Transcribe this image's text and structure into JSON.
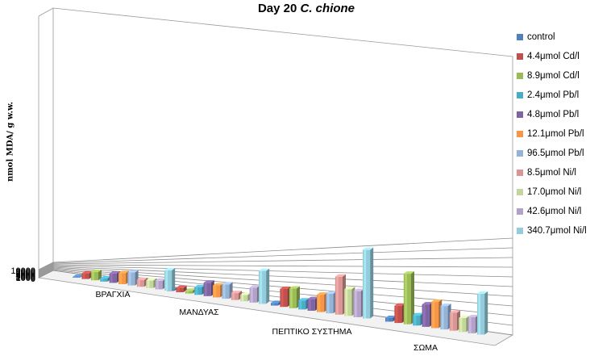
{
  "chart_data": {
    "type": "bar",
    "title": "Day 20",
    "title_italic": "C. chione",
    "ylabel": "nmol MDA/ g w.w.",
    "xlabel": "",
    "ylim": [
      0,
      10000
    ],
    "yticks": [
      "0",
      "1000",
      "2000",
      "3000",
      "4000",
      "5000",
      "6000",
      "7000",
      "8000",
      "9000",
      "10000"
    ],
    "grid": true,
    "legend_position": "right",
    "categories": [
      "ΒΡΑΓΧΙΑ",
      "ΜΑΝΔΥΑΣ",
      "ΠΕΠΤΙΚΟ ΣΥΣΤΗΜΑ",
      "ΣΩΜΑ"
    ],
    "series": [
      {
        "name": "control",
        "color": "#4F81BD",
        "values": [
          500,
          500,
          500,
          500
        ]
      },
      {
        "name": "4.4μmol Cd/l",
        "color": "#C0504D",
        "values": [
          3900,
          1300,
          3400,
          2300
        ]
      },
      {
        "name": "8.9μmol Cd/l",
        "color": "#9BBB59",
        "values": [
          5150,
          800,
          3600,
          6600
        ]
      },
      {
        "name": "2.4μmol Pb/l",
        "color": "#4BACC6",
        "values": [
          1700,
          2100,
          1600,
          1300
        ]
      },
      {
        "name": "4.8μmol Pb/l",
        "color": "#8064A2",
        "values": [
          4750,
          3550,
          2000,
          2800
        ]
      },
      {
        "name": "12.1μmol Pb/l",
        "color": "#F79646",
        "values": [
          5200,
          3000,
          2900,
          3200
        ]
      },
      {
        "name": "96.5μmol Pb/l",
        "color": "#95B3D7",
        "values": [
          5600,
          3450,
          3200,
          2800
        ]
      },
      {
        "name": "8.5μmol Ni/l",
        "color": "#D99694",
        "values": [
          2700,
          1600,
          6000,
          2100
        ]
      },
      {
        "name": "17.0μmol Ni/l",
        "color": "#C3D69B",
        "values": [
          2800,
          1400,
          4100,
          1600
        ]
      },
      {
        "name": "42.6μmol Ni/l",
        "color": "#B2A2C7",
        "values": [
          3000,
          3200,
          3900,
          1800
        ]
      },
      {
        "name": "340.7μmol Ni/l",
        "color": "#93CDDD",
        "values": [
          6700,
          6800,
          10000,
          4500
        ]
      }
    ]
  }
}
